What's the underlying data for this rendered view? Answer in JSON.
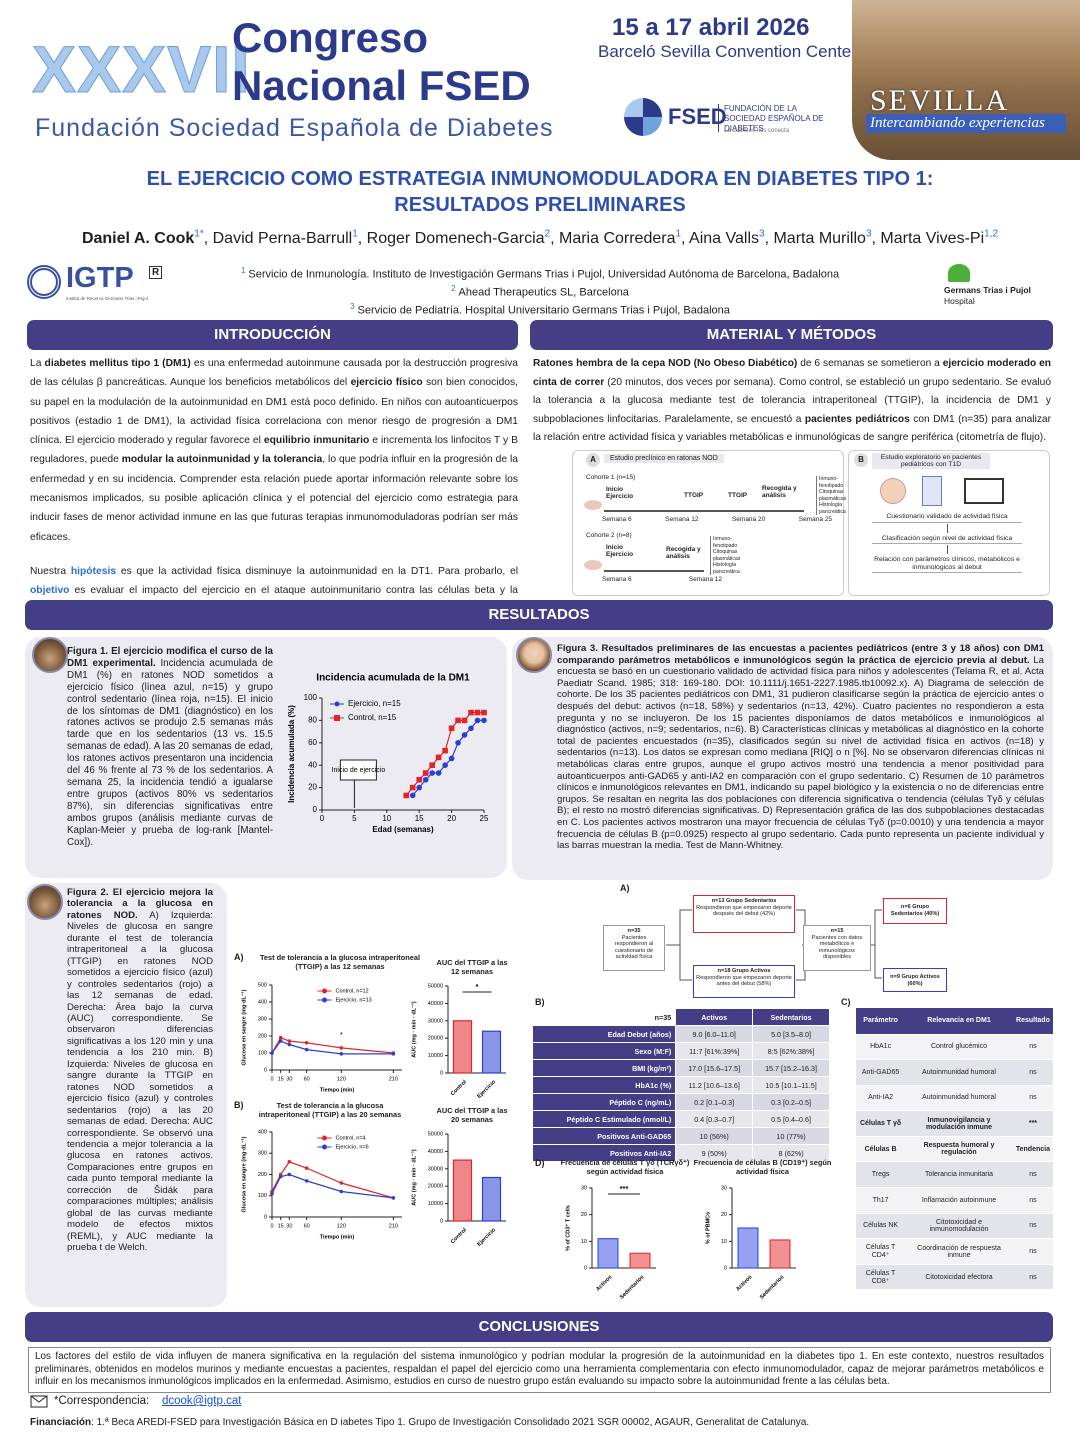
{
  "header": {
    "edition": "XXXVII",
    "congress_line1": "Congreso",
    "congress_line2": "Nacional FSED",
    "foundation": "Fundación Sociedad Española de Diabetes",
    "dates": "15 a 17 abril 2026",
    "venue": "Barceló Sevilla Convention Center",
    "fsed_logo": "FSED",
    "fsed_name": "FUNDACIÓN DE LA SOCIEDAD ESPAÑOLA DE DIABETES",
    "fsed_tagline": "La diabetes nos conecta",
    "city": "SEVILLA",
    "city_tagline": "Intercambiando experiencias"
  },
  "title_line1": "EL EJERCICIO COMO ESTRATEGIA INMUNOMODULADORA EN DIABETES TIPO 1:",
  "title_line2": "RESULTADOS PRELIMINARES",
  "authors": [
    {
      "name": "Daniel A. Cook",
      "sup": "1*"
    },
    {
      "name": "David Perna-Barrull",
      "sup": "1"
    },
    {
      "name": "Roger Domenech-Garcia",
      "sup": "2"
    },
    {
      "name": "Maria Corredera",
      "sup": "1"
    },
    {
      "name": "Aina Valls",
      "sup": "3"
    },
    {
      "name": "Marta Murillo",
      "sup": "3"
    },
    {
      "name": "Marta Vives-Pi",
      "sup": "1,2"
    }
  ],
  "affiliations": [
    {
      "sup": "1",
      "text": "Servicio de Inmunología. Instituto de Investigación Germans Trias i Pujol, Universidad Autónoma de Barcelona, Badalona"
    },
    {
      "sup": "2",
      "text": "Ahead Therapeutics SL, Barcelona"
    },
    {
      "sup": "3",
      "text": "Servicio de Pediatría. Hospital Universitario Germans Trias i Pujol, Badalona"
    }
  ],
  "igtp_logo": {
    "name": "IGTP",
    "mark": "R",
    "subtitle": "Institut de Recerca Germans Trias i Pujol"
  },
  "hospital_logo": {
    "name": "Germans Trias i Pujol",
    "subtitle": "Hospital"
  },
  "introduction": {
    "heading": "INTRODUCCIÓN",
    "paragraphs": [
      [
        {
          "t": "La "
        },
        {
          "t": "diabetes mellitus tipo 1 (DM1)",
          "s": "b"
        },
        {
          "t": " es una enfermedad autoinmune causada por la destrucción progresiva de las células β pancreáticas. Aunque los beneficios metabólicos del "
        },
        {
          "t": "ejercicio físico",
          "s": "b"
        },
        {
          "t": " son bien conocidos, su papel en la modulación de la autoinmunidad en DM1 está poco definido. En niños con autoanticuerpos positivos (estadio 1 de DM1), la actividad física correlaciona con menor riesgo de progresión a DM1 clínica. El ejercicio moderado y regular favorece el "
        },
        {
          "t": "equilibrio inmunitario",
          "s": "b"
        },
        {
          "t": " e incrementa los linfocitos T y B reguladores, puede "
        },
        {
          "t": "modular la autoinmunidad y la tolerancia",
          "s": "b"
        },
        {
          "t": ", lo que podría influir en la progresión de la enfermedad y en su incidencia. Comprender esta relación puede aportar información relevante sobre los mecanismos implicados, su posible aplicación clínica y el potencial del ejercicio como estrategia para inducir fases de menor actividad inmune en las que futuras terapias inmunomoduladoras podrían ser más eficaces."
        }
      ],
      [
        {
          "t": "Nuestra "
        },
        {
          "t": "hipótesis",
          "s": "hl"
        },
        {
          "t": " es que la actividad física disminuye la autoinmunidad en la DT1. Para probarlo, el "
        },
        {
          "t": "objetivo",
          "s": "hl"
        },
        {
          "t": " es evaluar el impacto del ejercicio en el ataque autoinmunitario contra las células beta y la progresión de la enfermedad."
        }
      ]
    ]
  },
  "methods": {
    "heading": "MATERIAL Y MÉTODOS",
    "paragraph": [
      {
        "t": "Ratones hembra de la cepa NOD (No Obeso Diabético)",
        "s": "b"
      },
      {
        "t": " de 6 semanas se sometieron a "
      },
      {
        "t": "ejercicio moderado en cinta de correr",
        "s": "b"
      },
      {
        "t": " (20 minutos, dos veces por semana). Como control, se estableció un grupo sedentario. Se evaluó la tolerancia a la glucosa mediante test de tolerancia intraperitoneal (TTGIP), la incidencia de DM1 y subpoblaciones linfocitarias. Paralelamente, se encuestó a "
      },
      {
        "t": "pacientes pediátricos",
        "s": "b"
      },
      {
        "t": " con DM1 (n=35) para analizar la relación entre actividad física y variables metabólicas e inmunológicas de sangre periférica (citometría de flujo)."
      }
    ],
    "diagram": {
      "a_letter": "A",
      "a_title": "Estudio preclínico en ratonas NOD",
      "cohort1": "Cohorte 1 (n=15)",
      "cohort2": "Cohorte 2 (n=8)",
      "start": "Inicio Ejercicio",
      "ttgip": "TTGIP",
      "collect": "Recogida y análisis",
      "weeks1": [
        "Semana 6",
        "Semana 12",
        "Semana 20",
        "Semana 25"
      ],
      "weeks2": [
        "Semana 6",
        "Semana 12"
      ],
      "outputs": [
        "Inmuno-fenotipado",
        "Citoquinas plasmáticas",
        "Histología pancreática"
      ],
      "b_letter": "B",
      "b_title": "Estudio exploratorio en pacientes pediátricos con T1D",
      "b_steps": [
        "Cuestionario validado de actividad física",
        "Clasificación según nivel de actividad física",
        "Relación con parámetros clínicos, metabólicos e inmunológicos al debut"
      ]
    }
  },
  "results": {
    "heading": "RESULTADOS",
    "figure1": {
      "title": "Figura 1. El ejercicio modifica el curso de la DM1 experimental.",
      "text": " Incidencia acumulada de DM1 (%) en ratones NOD sometidos a ejercicio físico (línea azul, n=15) y grupo control sedentario (línea roja, n=15). El inicio de los síntomas de DM1 (diagnóstico) en los ratones activos se produjo 2.5 semanas más tarde que en los sedentarios (13 vs. 15.5 semanas de edad). A las 20 semanas de edad, los ratones activos presentaron una incidencia del 46 % frente al 73 % de los sedentarios. A semana 25, la incidencia tendió a igualarse entre grupos (activos 80% vs sedentarios 87%), sin diferencias significativas entre ambos grupos (análisis mediante curvas de Kaplan-Meier y prueba de log-rank [Mantel-Cox])."
    },
    "figure2": {
      "title": "Figura 2. El ejercicio mejora la tolerancia a la glucosa en ratones NOD.",
      "text": " A) Izquierda: Niveles de glucosa en sangre durante el test de tolerancia intraperitoneal a la glucosa (TTGIP) en ratones NOD sometidos a ejercicio físico (azul) y controles sedentarios (rojo) a las 12 semanas de edad. Derecha: Área bajo la curva (AUC) correspondiente. Se observaron diferencias significativas a los 120 min y una tendencia a los 210 min. B) Izquierda: Niveles de glucosa en sangre durante la TTGIP en ratones NOD sometidos a ejercicio físico (azul) y controles sedentarios (rojo) a las 20 semanas de edad. Derecha: AUC correspondiente. Se observó una tendencia a mejor tolerancia a la glucosa en ratones activos. Comparaciones entre grupos en cada punto temporal mediante la corrección de Šidák para comparaciones múltiples; análisis global de las curvas mediante modelo de efectos mixtos (REML), y AUC mediante la prueba t de Welch.",
      "panel_a": "A)",
      "panel_b": "B)"
    },
    "figure3": {
      "title": "Figura 3. Resultados preliminares de las encuestas a pacientes pediátricos (entre 3 y 18 años) con DM1 comparando parámetros metabólicos e inmunológicos según la práctica de ejercicio previa al debut.",
      "text": " La encuesta se basó en un cuestionario validado de actividad física para niños y adolescentes (Telama R, et al. Acta Paediatr Scand. 1985; 318: 169-180. DOI: 10.1111/j.1651-2227.1985.tb10092.x). A) Diagrama de selección de cohorte. De los 35 pacientes pediátricos con DM1, 31 pudieron clasificarse según la práctica de ejercicio antes o después del debut: activos (n=18, 58%) y sedentarios (n=13, 42%). Cuatro pacientes no respondieron a esta pregunta y no se incluyeron. De los 15 pacientes disponíamos de datos metabólicos e inmunológicos al diagnóstico (activos, n=9; sedentarios, n=6). B) Características clínicas y metabólicas al diagnóstico en la cohorte total de pacientes encuestados (n=35), clasificados según su nivel de actividad física en activos (n=18) y sedentarios (n=13). Los datos se expresan como mediana [RIQ] o n [%]. No se observaron diferencias clínicas ni metabólicas claras entre grupos, aunque el grupo activos mostró una tendencia a menor positividad para autoanticuerpos anti-GAD65 y anti-IA2 en comparación con el grupo sedentario. C) Resumen de 10 parámetros clínicos e inmunológicos relevantes en DM1, indicando su papel biológico y la existencia o no de diferencias entre grupos. Se resaltan en negrita las dos poblaciones con diferencia significativa o tendencia (células Tγδ y células B); el resto no mostró diferencias significativas. D) Representación gráfica de las dos subpoblaciones destacadas en C. Los pacientes activos mostraron una mayor frecuencia de células Tγδ (p=0.0010) y una tendencia a mayor frecuencia de células B (p=0.0925) respecto al grupo sedentario. Cada punto representa un paciente individual y las barras muestran la media. Test de Mann-Whitney.",
      "panel_a": "A)",
      "panel_b": "B)",
      "panel_c": "C)",
      "panel_d": "D)",
      "flow": {
        "total": {
          "head": "n=35",
          "body": "Pacientes respondieron al cuestionario de actividad física"
        },
        "sedentary": {
          "head": "n=13 Grupo Sedentarios",
          "body": "Respondieron que empezaron deporte después del debut (42%)"
        },
        "active": {
          "head": "n=18 Grupo Activos",
          "body": "Respondieron que empezaron deporte antes del debut (58%)"
        },
        "available": {
          "head": "n=15",
          "body": "Pacientes con datos metabólicos e inmunológicos disponibles"
        },
        "sedentary_final": "n=6 Grupo Sedentarios (40%)",
        "active_final": "n=9 Grupo Activos (60%)"
      },
      "table_b": {
        "header": [
          "n=35",
          "Activos",
          "Sedentarios"
        ],
        "rows": [
          [
            "Edad Debut (años)",
            "9.0 [6.0–11.0]",
            "5.0 [3.5–8.0]"
          ],
          [
            "Sexo (M:F)",
            "11:7 [61%:39%]",
            "8:5 [62%:38%]"
          ],
          [
            "BMI (kg/m²)",
            "17.0 [15.6–17.5]",
            "15.7 [15.2–16.3]"
          ],
          [
            "HbA1c (%)",
            "11.2 [10.6–13.6]",
            "10.5 [10.1–11.5]"
          ],
          [
            "Péptido C (ng/mL)",
            "0.2 [0.1–0.3]",
            "0.3 [0.2–0.5]"
          ],
          [
            "Péptido C Estimulado (nmol/L)",
            "0.4 [0.3–0.7]",
            "0.5 [0.4–0.6]"
          ],
          [
            "Positivos Anti-GAD65",
            "10 (56%)",
            "10 (77%)"
          ],
          [
            "Positivos Anti-IA2",
            "9 (50%)",
            "8 (62%)"
          ]
        ]
      },
      "table_c": {
        "header": [
          "Parámetro",
          "Relevancia en DM1",
          "Resultado"
        ],
        "rows": [
          [
            "HbA1c",
            "Control glucémico",
            "ns"
          ],
          [
            "Anti-GAD65",
            "Autoinmunidad humoral",
            "ns"
          ],
          [
            "Anti-IA2",
            "Autoinmunidad humoral",
            "ns"
          ],
          [
            "Células T γδ",
            "Inmunovigilancia y modulación inmune",
            "***"
          ],
          [
            "Células B",
            "Respuesta humoral y regulación",
            "Tendencia"
          ],
          [
            "Tregs",
            "Tolerancia inmunitaria",
            "ns"
          ],
          [
            "Th17",
            "Inflamación autoinmune",
            "ns"
          ],
          [
            "Células NK",
            "Citotoxicidad e inmunomodulación",
            "ns"
          ],
          [
            "Células T CD4⁺",
            "Coordinación de respuesta inmune",
            "ns"
          ],
          [
            "Células T CD8⁺",
            "Citotoxicidad efectora",
            "ns"
          ]
        ],
        "bold_rows": [
          3,
          4
        ]
      }
    }
  },
  "chart_data": [
    {
      "type": "line",
      "title": "Incidencia acumulada de la DM1",
      "x_label": "Edad (semanas)",
      "y_label": "Incidencia acumulada (%)",
      "xlim": [
        0,
        25
      ],
      "xticks": [
        0,
        5,
        10,
        15,
        20,
        25
      ],
      "ylim": [
        0,
        100
      ],
      "yticks": [
        0,
        20,
        40,
        60,
        80,
        100
      ],
      "legend": "upper left",
      "annotation": {
        "text": "Inicio de ejercicio",
        "x": 5
      },
      "series": [
        {
          "name": "Ejercicio, n=15",
          "color": "#2b3fd4",
          "marker": "circle",
          "x": [
            14,
            15,
            16,
            17,
            18,
            19,
            20,
            21,
            22,
            23,
            24,
            25
          ],
          "values": [
            13,
            20,
            27,
            33,
            33,
            40,
            46,
            60,
            67,
            73,
            80,
            80
          ]
        },
        {
          "name": "Control, n=15",
          "color": "#e0242a",
          "marker": "square",
          "x": [
            13,
            14,
            15,
            16,
            17,
            18,
            19,
            20,
            21,
            22,
            23,
            24,
            25
          ],
          "values": [
            13,
            20,
            27,
            33,
            40,
            47,
            53,
            73,
            80,
            80,
            87,
            87,
            87
          ]
        }
      ]
    },
    {
      "type": "line",
      "title": "Test de tolerancia a la glucosa intraperitoneal (TTGIP) a las 12 semanas",
      "x_label": "Tiempo (min)",
      "y_label": "Glucosa en sangre (mg·dL⁻¹)",
      "xlim": [
        0,
        225
      ],
      "xticks": [
        0,
        15,
        30,
        60,
        120,
        210
      ],
      "ylim": [
        0,
        500
      ],
      "yticks": [
        0,
        100,
        200,
        300,
        400,
        500
      ],
      "legend": "upper right",
      "annotations": [
        {
          "text": "*",
          "x": 120,
          "y": 160
        }
      ],
      "series": [
        {
          "name": "Control, n=12",
          "color": "#e0242a",
          "marker": "circle",
          "x": [
            0,
            15,
            30,
            60,
            120,
            210
          ],
          "values": [
            100,
            190,
            170,
            160,
            130,
            100
          ]
        },
        {
          "name": "Ejercicio, n=13",
          "color": "#2b3fd4",
          "marker": "circle",
          "x": [
            0,
            15,
            30,
            60,
            120,
            210
          ],
          "values": [
            100,
            170,
            150,
            120,
            95,
            95
          ]
        }
      ]
    },
    {
      "type": "bar",
      "title": "AUC del TTGIP a las 12 semanas",
      "y_label": "AUC (mg · min · dL⁻¹)",
      "categories": [
        "Control",
        "Ejercicio"
      ],
      "values": [
        30000,
        24000
      ],
      "colors": [
        "#e0242a",
        "#2b3fd4"
      ],
      "ylim": [
        0,
        50000
      ],
      "yticks": [
        0,
        10000,
        20000,
        30000,
        40000,
        50000
      ],
      "significance": "*"
    },
    {
      "type": "line",
      "title": "Test de tolerancia a la glucosa intraperitoneal (TTGIP) a las 20 semanas",
      "x_label": "Tiempo (min)",
      "y_label": "Glucosa en sangre (mg·dL⁻¹)",
      "xlim": [
        0,
        225
      ],
      "xticks": [
        0,
        15,
        30,
        60,
        120,
        210
      ],
      "ylim": [
        0,
        400
      ],
      "yticks": [
        0,
        100,
        200,
        300,
        400
      ],
      "legend": "upper right",
      "series": [
        {
          "name": "Control, n=4",
          "color": "#e0242a",
          "marker": "circle",
          "x": [
            0,
            15,
            30,
            60,
            120,
            210
          ],
          "values": [
            120,
            200,
            260,
            230,
            160,
            90
          ]
        },
        {
          "name": "Ejercicio, n=6",
          "color": "#2b3fd4",
          "marker": "circle",
          "x": [
            0,
            15,
            30,
            60,
            120,
            210
          ],
          "values": [
            110,
            190,
            200,
            170,
            120,
            90
          ]
        }
      ]
    },
    {
      "type": "bar",
      "title": "AUC del TTGIP a las 20 semanas",
      "y_label": "AUC (mg · min · dL⁻¹)",
      "categories": [
        "Control",
        "Ejercicio"
      ],
      "values": [
        35000,
        25000
      ],
      "colors": [
        "#e0242a",
        "#2b3fd4"
      ],
      "ylim": [
        0,
        50000
      ],
      "yticks": [
        0,
        10000,
        20000,
        30000,
        40000,
        50000
      ]
    },
    {
      "type": "bar",
      "title": "Frecuencia de células T γδ (TCRγδ⁺) según actividad física",
      "y_label": "% of CD3⁺ T cells",
      "categories": [
        "Activos",
        "Sedentarios"
      ],
      "values": [
        11,
        5.5
      ],
      "colors": [
        "#3f54e8",
        "#e63838"
      ],
      "ylim": [
        0,
        30
      ],
      "yticks": [
        0,
        10,
        20,
        30
      ],
      "significance": "***"
    },
    {
      "type": "bar",
      "title": "Frecuencia de células B (CD19⁺) según actividad física",
      "y_label": "% of PBMCs",
      "categories": [
        "Activos",
        "Sedentarios"
      ],
      "values": [
        15,
        10.5
      ],
      "colors": [
        "#3f54e8",
        "#e63838"
      ],
      "ylim": [
        0,
        30
      ],
      "yticks": [
        0,
        10,
        20,
        30
      ]
    }
  ],
  "conclusions": {
    "heading": "CONCLUSIONES",
    "text": "Los factores del estilo de vida influyen de manera significativa en la regulación del sistema inmunológico y podrían modular la progresión de la autoinmunidad en la diabetes tipo 1. En este contexto, nuestros resultados preliminares, obtenidos en modelos murinos y mediante encuestas a pacientes, respaldan el papel del ejercicio como una herramienta complementaria con efecto inmunomodulador, capaz de mejorar parámetros metabólicos e influir en los mecanismos inmunológicos implicados en la enfermedad. Asimismo, estudios en curso de nuestro grupo están evaluando su impacto sobre la autoinmunidad frente a las células beta."
  },
  "correspondence": {
    "label": "*Correspondencia:",
    "email": "dcook@igtp.cat"
  },
  "funding": {
    "label": "Financiación",
    "text": ": 1.ª Beca AREDI-FSED para Investigación Básica en D iabetes Tipo 1. Grupo de Investigación Consolidado 2021 SGR 00002, AGAUR, Generalitat de Catalunya."
  }
}
